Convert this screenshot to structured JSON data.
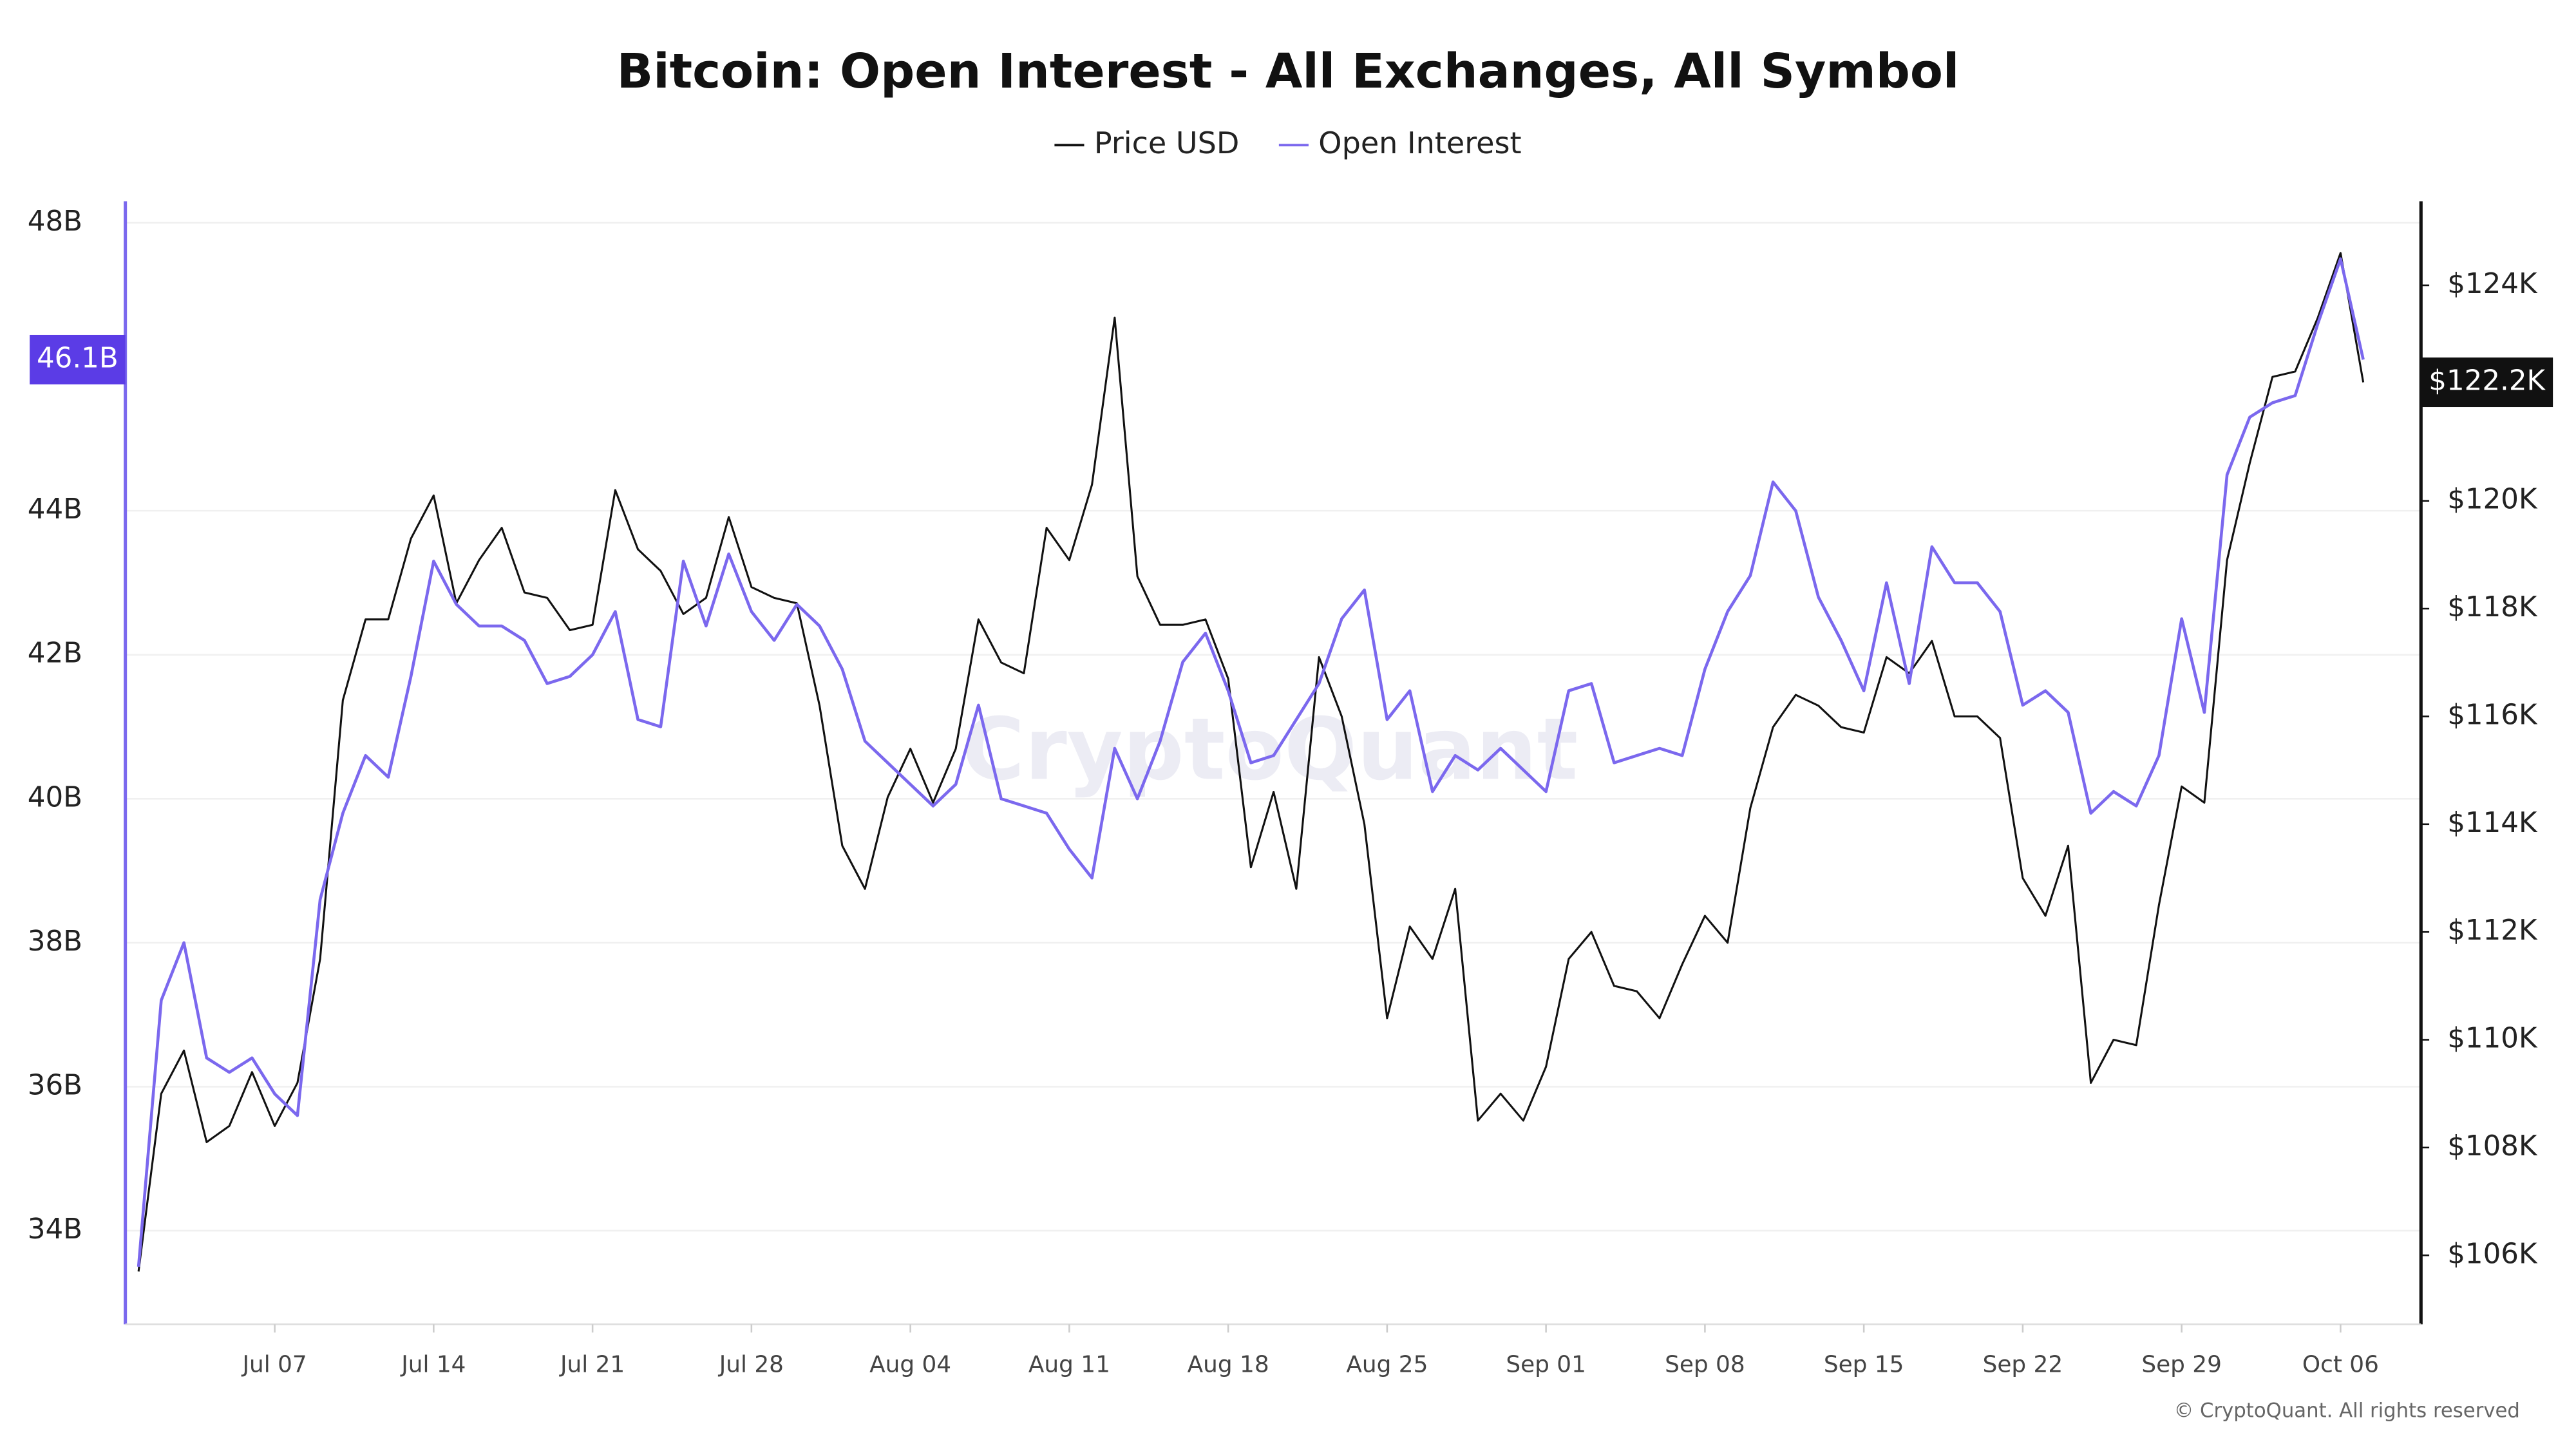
{
  "chart_data": {
    "type": "line",
    "title": "Bitcoin: Open Interest - All Exchanges, All Symbol",
    "watermark": "CryptoQuant",
    "credit": "© CryptoQuant. All rights reserved",
    "categories": [
      null,
      null,
      null,
      null,
      null,
      null,
      "Jul 07",
      null,
      null,
      null,
      null,
      null,
      null,
      "Jul 14",
      null,
      null,
      null,
      null,
      null,
      null,
      "Jul 21",
      null,
      null,
      null,
      null,
      null,
      null,
      "Jul 28",
      null,
      null,
      null,
      null,
      null,
      null,
      "Aug 04",
      null,
      null,
      null,
      null,
      null,
      null,
      "Aug 11",
      null,
      null,
      null,
      null,
      null,
      null,
      "Aug 18",
      null,
      null,
      null,
      null,
      null,
      null,
      "Aug 25",
      null,
      null,
      null,
      null,
      null,
      null,
      "Sep 01",
      null,
      null,
      null,
      null,
      null,
      null,
      "Sep 08",
      null,
      null,
      null,
      null,
      null,
      null,
      "Sep 15",
      null,
      null,
      null,
      null,
      null,
      null,
      "Sep 22",
      null,
      null,
      null,
      null,
      null,
      null,
      "Sep 29",
      null,
      null,
      null,
      null,
      null,
      null,
      "Oct 06",
      null
    ],
    "series": [
      {
        "name": "Price USD",
        "color": "#111111",
        "axis": "y2",
        "values": [
          105.7,
          109.0,
          109.8,
          108.1,
          108.4,
          109.4,
          108.4,
          109.2,
          111.5,
          116.3,
          117.8,
          117.8,
          119.3,
          120.1,
          118.1,
          118.9,
          119.5,
          118.3,
          118.2,
          117.6,
          117.7,
          120.2,
          119.1,
          118.7,
          117.9,
          118.2,
          119.7,
          118.4,
          118.2,
          118.1,
          116.2,
          113.6,
          112.8,
          114.5,
          115.4,
          114.4,
          115.4,
          117.8,
          117.0,
          116.8,
          119.5,
          118.9,
          120.3,
          123.4,
          118.6,
          117.7,
          117.7,
          117.8,
          116.7,
          113.2,
          114.6,
          112.8,
          117.1,
          116.0,
          114.0,
          110.4,
          112.1,
          111.5,
          112.8,
          108.5,
          109.0,
          108.5,
          109.5,
          111.5,
          112.0,
          111.0,
          110.9,
          110.4,
          111.4,
          112.3,
          111.8,
          114.3,
          115.8,
          116.4,
          116.2,
          115.8,
          115.7,
          117.1,
          116.8,
          117.4,
          116.0,
          116.0,
          115.6,
          113.0,
          112.3,
          113.6,
          109.2,
          110.0,
          109.9,
          112.5,
          114.7,
          114.4,
          118.9,
          120.7,
          122.3,
          122.4,
          123.4,
          124.6,
          122.2
        ],
        "value_labels": [
          null,
          null,
          null,
          null,
          null,
          null,
          null,
          null,
          null,
          null,
          null,
          null,
          null,
          null,
          null,
          null,
          null,
          null,
          null,
          null,
          null,
          null,
          null,
          null,
          null,
          null,
          null,
          null,
          null,
          null,
          null,
          null,
          null,
          null,
          null,
          null,
          null,
          null,
          null,
          null,
          null,
          null,
          null,
          null,
          null,
          null,
          null,
          null,
          null,
          null,
          null,
          null,
          null,
          null,
          null,
          null,
          null,
          null,
          null,
          null,
          null,
          null,
          null,
          null,
          null,
          null,
          null,
          null,
          null,
          null,
          null,
          null,
          null,
          null,
          null,
          null,
          null,
          null,
          null,
          null,
          null,
          null,
          null,
          null,
          null,
          null,
          null,
          null,
          null,
          null,
          null,
          null,
          null,
          null,
          null,
          null,
          null,
          null,
          "$122.2K"
        ]
      },
      {
        "name": "Open Interest",
        "color": "#7b68ee",
        "values": [
          33.5,
          37.2,
          38.0,
          36.4,
          36.2,
          36.4,
          35.9,
          35.6,
          38.6,
          39.8,
          40.6,
          40.3,
          41.7,
          43.3,
          42.7,
          42.4,
          42.4,
          42.2,
          41.6,
          41.7,
          42.0,
          42.6,
          41.1,
          41.0,
          43.3,
          42.4,
          43.4,
          42.6,
          42.2,
          42.7,
          42.4,
          41.8,
          40.8,
          40.5,
          40.2,
          39.9,
          40.2,
          41.3,
          40.0,
          39.9,
          39.8,
          39.3,
          38.9,
          40.7,
          40.0,
          40.8,
          41.9,
          42.3,
          41.5,
          40.5,
          40.6,
          41.1,
          41.6,
          42.5,
          42.9,
          41.1,
          41.5,
          40.1,
          40.6,
          40.4,
          40.7,
          40.4,
          40.1,
          41.5,
          41.6,
          40.5,
          40.6,
          40.7,
          40.6,
          41.8,
          42.6,
          43.1,
          44.4,
          44.0,
          42.8,
          42.2,
          41.5,
          43.0,
          41.6,
          43.5,
          43.0,
          43.0,
          42.6,
          41.3,
          41.5,
          41.2,
          39.8,
          40.1,
          39.9,
          40.6,
          42.5,
          41.2,
          44.5,
          45.3,
          45.5,
          45.6,
          46.6,
          47.5,
          46.1
        ],
        "value_labels": [
          null,
          null,
          null,
          null,
          null,
          null,
          null,
          null,
          null,
          null,
          null,
          null,
          null,
          null,
          null,
          null,
          null,
          null,
          null,
          null,
          null,
          null,
          null,
          null,
          null,
          null,
          null,
          null,
          null,
          null,
          null,
          null,
          null,
          null,
          null,
          null,
          null,
          null,
          null,
          null,
          null,
          null,
          null,
          null,
          null,
          null,
          null,
          null,
          null,
          null,
          null,
          null,
          null,
          null,
          null,
          null,
          null,
          null,
          null,
          null,
          null,
          null,
          null,
          null,
          null,
          null,
          null,
          null,
          null,
          null,
          null,
          null,
          null,
          null,
          null,
          null,
          null,
          null,
          null,
          null,
          null,
          null,
          null,
          null,
          null,
          null,
          null,
          null,
          null,
          null,
          null,
          null,
          null,
          null,
          null,
          null,
          null,
          null,
          "46.1B"
        ]
      }
    ],
    "ylim": [
      32.7,
      48.3
    ],
    "yticks": [
      {
        "value": 34,
        "label": "34B"
      },
      {
        "value": 36,
        "label": "36B"
      },
      {
        "value": 38,
        "label": "38B"
      },
      {
        "value": 40,
        "label": "40B"
      },
      {
        "value": 42,
        "label": "42B"
      },
      {
        "value": 44,
        "label": "44B"
      },
      {
        "value": 48,
        "label": "48B"
      }
    ],
    "y2lim": [
      104.72,
      125.56
    ],
    "y2ticks": [
      {
        "value": 106,
        "label": "$106K"
      },
      {
        "value": 108,
        "label": "$108K"
      },
      {
        "value": 110,
        "label": "$110K"
      },
      {
        "value": 112,
        "label": "$112K"
      },
      {
        "value": 114,
        "label": "$114K"
      },
      {
        "value": 116,
        "label": "$116K"
      },
      {
        "value": 118,
        "label": "$118K"
      },
      {
        "value": 120,
        "label": "$120K"
      },
      {
        "value": 124,
        "label": "$124K"
      }
    ],
    "grid": true,
    "legend": "top"
  }
}
